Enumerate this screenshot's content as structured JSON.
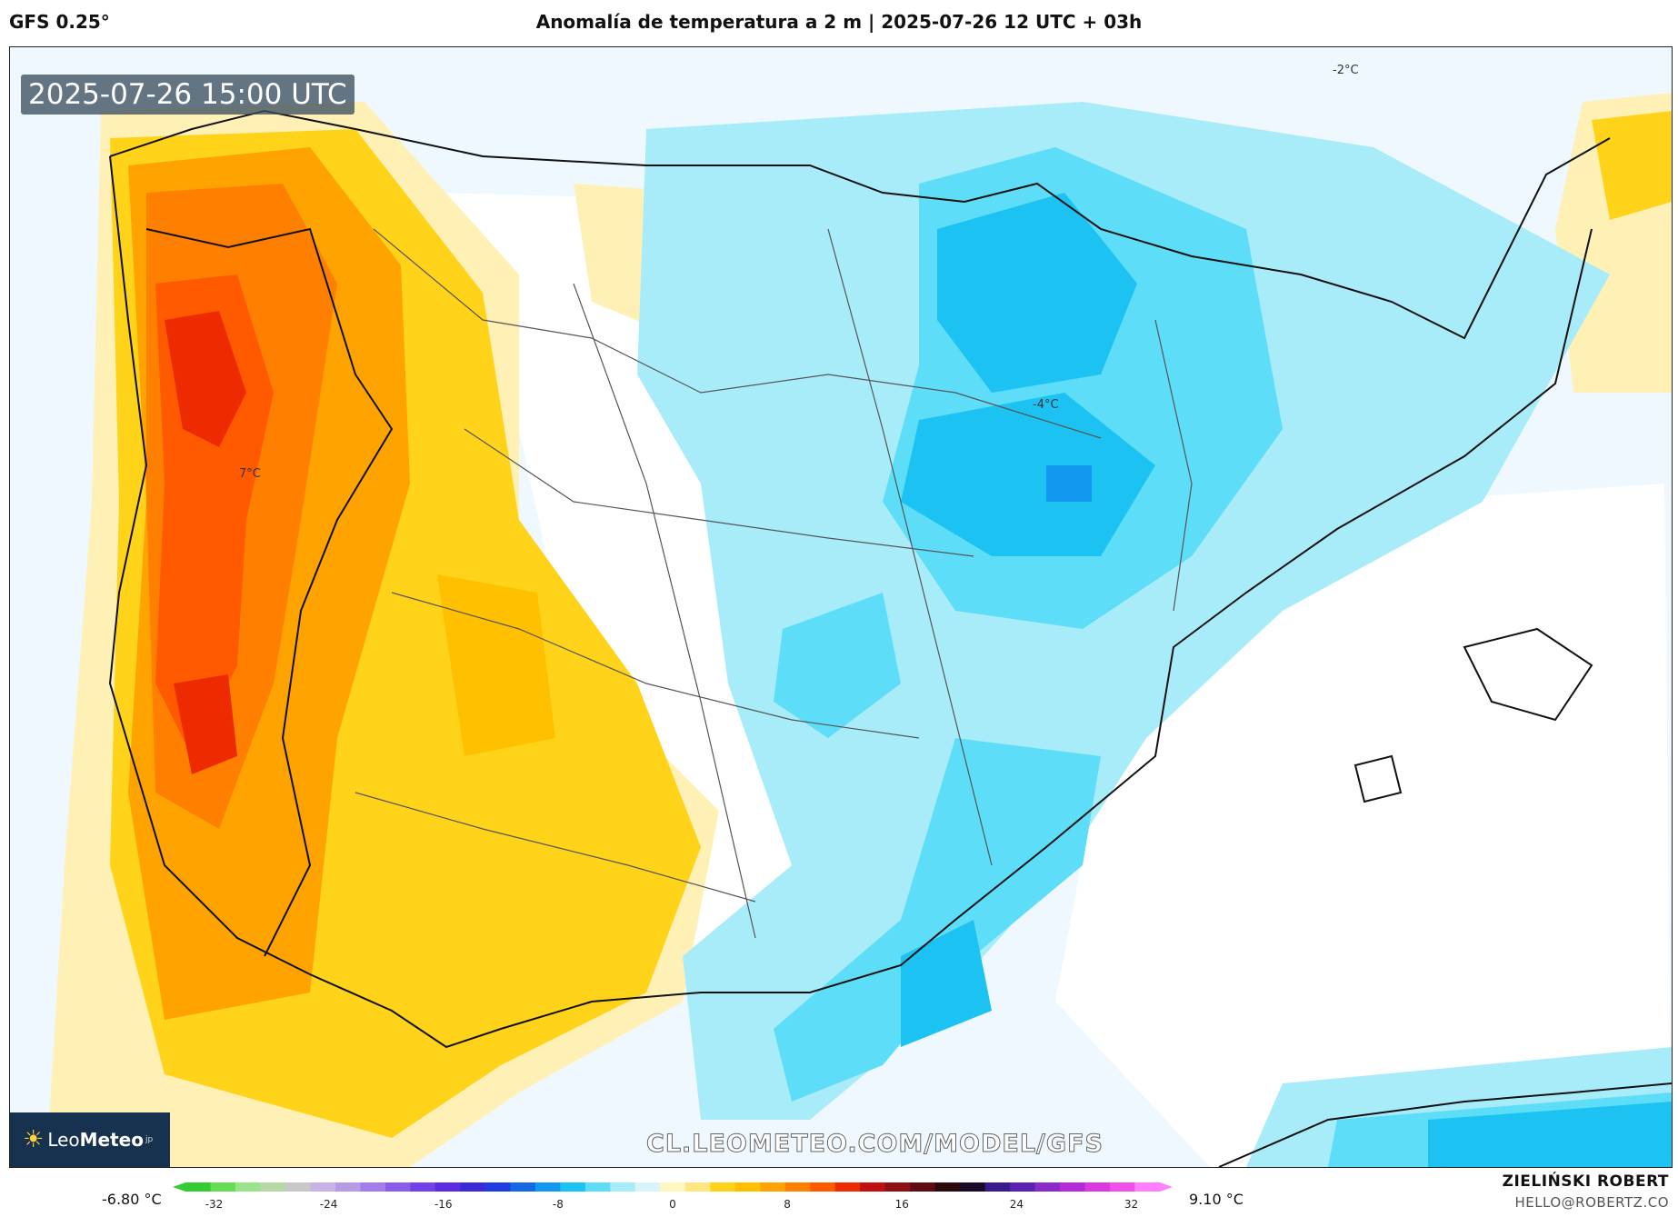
{
  "header": {
    "model": "GFS 0.25°",
    "title": "Anomalía de temperatura a 2 m | 2025-07-26 12 UTC + 03h"
  },
  "map": {
    "timestamp": "2025-07-26 15:00 UTC",
    "watermark": "CL.LEOMETEO.COM/MODEL/GFS",
    "contour_labels": {
      "north_east": "-2°C",
      "center": "-4°C",
      "west": "7°C"
    }
  },
  "brand": {
    "icon": "sun-icon",
    "name_light": "Leo",
    "name_bold": "Meteo",
    "suffix": "jp"
  },
  "colorbar": {
    "min_label": "-6.80 °C",
    "max_label": "9.10 °C",
    "ticks": [
      "-32",
      "-24",
      "-16",
      "-8",
      "0",
      "8",
      "16",
      "24",
      "32"
    ],
    "tick_values": [
      -32,
      -24,
      -16,
      -8,
      0,
      8,
      16,
      24,
      32
    ],
    "range": [
      -34,
      34
    ],
    "colors": [
      "#33cc33",
      "#66dd55",
      "#99e48a",
      "#b8d8a8",
      "#c8c8c8",
      "#c9b3e6",
      "#b79ae6",
      "#a27de8",
      "#8c5ee8",
      "#7440e8",
      "#5a2be0",
      "#3a2ad8",
      "#1f3de0",
      "#1468e6",
      "#1298ee",
      "#1cc3f2",
      "#5dddf7",
      "#a8ecfa",
      "#d8f5fc",
      "#fff7c0",
      "#ffe680",
      "#ffd31a",
      "#ffc000",
      "#ffa300",
      "#ff8000",
      "#ff5a00",
      "#ee2a00",
      "#c01010",
      "#8e0f14",
      "#5e0b12",
      "#2a0a0c",
      "#1a0a2a",
      "#3a1a8a",
      "#5a22b0",
      "#8a2ac8",
      "#b42ad8",
      "#d83ae0",
      "#f050e8",
      "#ff80ff"
    ]
  },
  "author": {
    "name": "ZIELIŃSKI ROBERT",
    "email": "HELLO@ROBERTZ.CO"
  }
}
